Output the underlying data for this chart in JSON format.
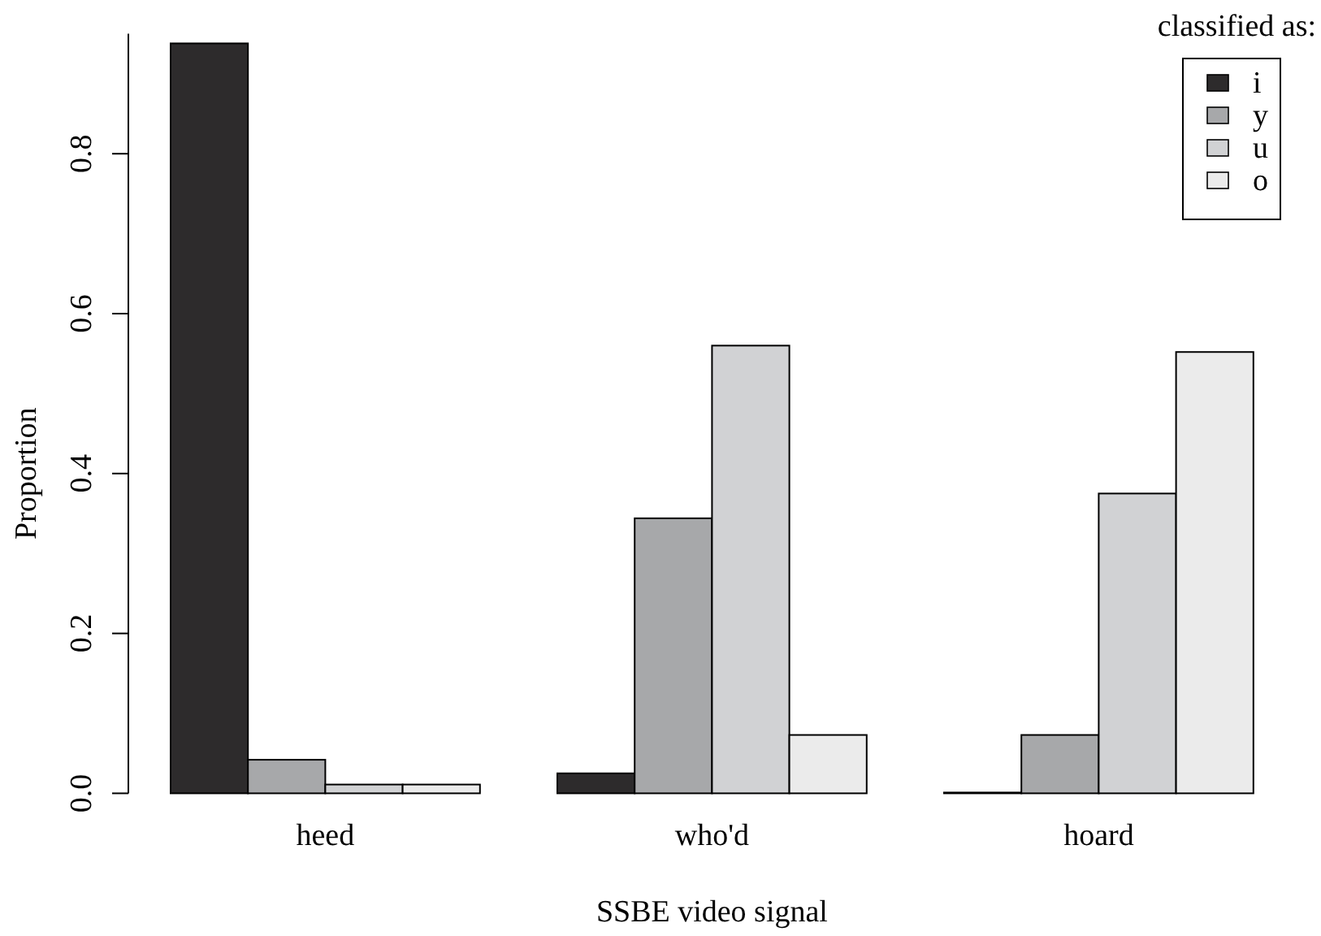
{
  "chart_data": {
    "type": "bar",
    "xlabel": "SSBE video signal",
    "ylabel": "Proportion",
    "legend_title": "classified as:",
    "categories": [
      "heed",
      "who'd",
      "hoard"
    ],
    "series": [
      {
        "name": "i",
        "color": "#2d2b2c",
        "values": [
          0.938,
          0.025,
          0.001
        ]
      },
      {
        "name": "y",
        "color": "#a7a8aa",
        "values": [
          0.042,
          0.344,
          0.073
        ]
      },
      {
        "name": "u",
        "color": "#d1d2d4",
        "values": [
          0.011,
          0.56,
          0.375
        ]
      },
      {
        "name": "o",
        "color": "#ebebeb",
        "values": [
          0.011,
          0.073,
          0.552
        ]
      }
    ],
    "ylim": [
      0,
      0.95
    ],
    "yticks": [
      {
        "value": 0,
        "label": "0.0"
      },
      0.2,
      0.4,
      0.6,
      0.8
    ],
    "grid": false,
    "legend": "top right"
  }
}
